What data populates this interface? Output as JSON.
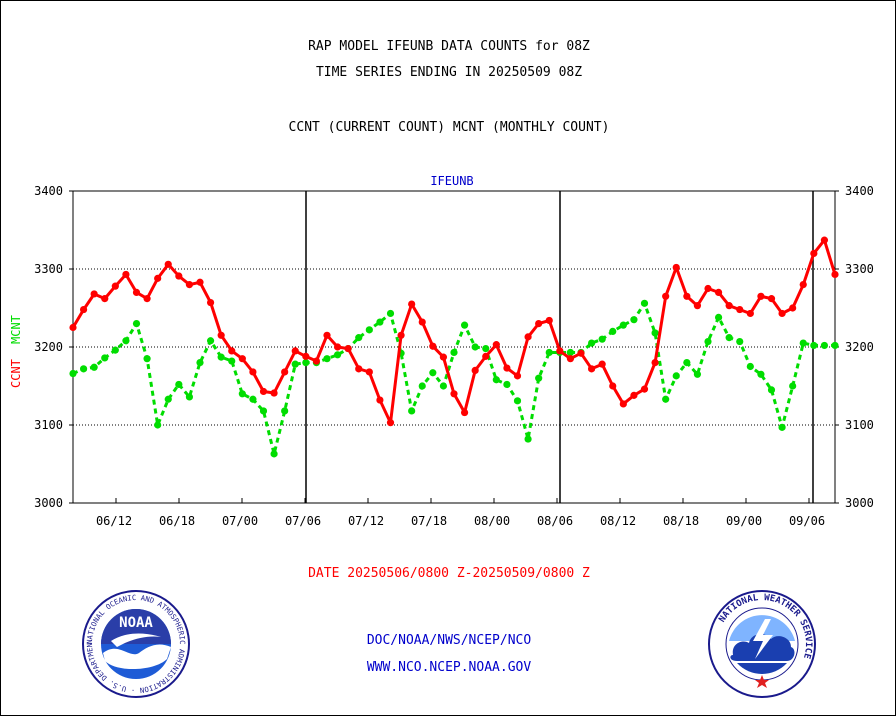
{
  "header": {
    "title1": "RAP MODEL IFEUNB DATA COUNTS for 08Z",
    "title2": "TIME SERIES ENDING IN 20250509 08Z",
    "subtitle": "CCNT (CURRENT COUNT) MCNT (MONTHLY COUNT)"
  },
  "footer": {
    "date_range": "DATE 20250506/0800 Z-20250509/0800 Z",
    "org_path": "DOC/NOAA/NWS/NCEP/NCO",
    "website": "WWW.NCO.NCEP.NOAA.GOV"
  },
  "logos": {
    "noaa_text": "NOAA",
    "noaa_ring_text": "NATIONAL OCEANIC AND ATMOSPHERIC ADMINISTRATION · U.S. DEPARTMENT OF COMMERCE ·",
    "nws_ring_text": "NATIONAL WEATHER SERVICE"
  },
  "colors": {
    "ccnt": "#ff0000",
    "mcnt": "#00dd00",
    "text_blue": "#0000cc",
    "axis": "#000000"
  },
  "chart_data": {
    "type": "line",
    "title": "IFEUNB",
    "ylabel_left": "CCNT",
    "ylabel_right": "MCNT",
    "ylim": [
      3000,
      3400
    ],
    "yticks": [
      3000,
      3100,
      3200,
      3300,
      3400
    ],
    "xticks": [
      "06/12",
      "06/18",
      "07/00",
      "07/06",
      "07/12",
      "07/18",
      "08/00",
      "08/06",
      "08/12",
      "08/18",
      "09/00",
      "09/06"
    ],
    "grid": true,
    "series": [
      {
        "name": "CCNT",
        "color": "#ff0000",
        "values": [
          3225,
          3248,
          3268,
          3262,
          3278,
          3293,
          3270,
          3262,
          3288,
          3306,
          3291,
          3280,
          3283,
          3257,
          3215,
          3195,
          3185,
          3168,
          3143,
          3141,
          3168,
          3195,
          3188,
          3182,
          3215,
          3200,
          3198,
          3172,
          3168,
          3132,
          3103,
          3215,
          3255,
          3232,
          3201,
          3187,
          3140,
          3116,
          3170,
          3188,
          3203,
          3173,
          3163,
          3213,
          3230,
          3234,
          3195,
          3185,
          3192,
          3172,
          3178,
          3150,
          3127,
          3138,
          3146,
          3180,
          3265,
          3302,
          3265,
          3253,
          3275,
          3270,
          3253,
          3248,
          3243,
          3265,
          3262,
          3243,
          3250,
          3280,
          3320,
          3337,
          3293
        ]
      },
      {
        "name": "MCNT",
        "color": "#00dd00",
        "values": [
          3166,
          3172,
          3174,
          3186,
          3196,
          3208,
          3230,
          3185,
          3100,
          3133,
          3152,
          3136,
          3180,
          3208,
          3187,
          3182,
          3140,
          3133,
          3118,
          3063,
          3118,
          3178,
          3180,
          3180,
          3185,
          3190,
          3198,
          3212,
          3222,
          3232,
          3243,
          3192,
          3118,
          3150,
          3167,
          3150,
          3193,
          3228,
          3200,
          3198,
          3158,
          3152,
          3131,
          3082,
          3160,
          3193,
          3193,
          3193,
          3193,
          3205,
          3210,
          3220,
          3228,
          3235,
          3256,
          3218,
          3133,
          3163,
          3180,
          3165,
          3207,
          3238,
          3212,
          3207,
          3175,
          3165,
          3145,
          3097,
          3150,
          3205,
          3202,
          3202,
          3202
        ]
      }
    ]
  }
}
